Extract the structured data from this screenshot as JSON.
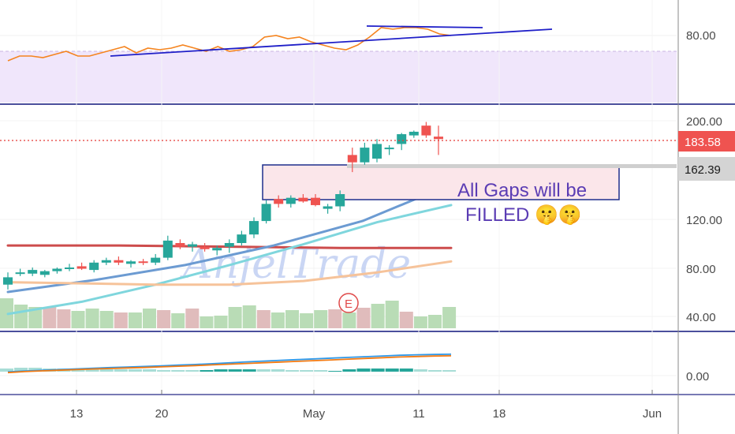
{
  "chart_data": {
    "type": "candlestick",
    "watermark": "AnjelTrade",
    "x_tick_labels": [
      "13",
      "20",
      "May",
      "11",
      "18",
      "Jun"
    ],
    "rsi_panel": {
      "tick_labels": [
        "80.00"
      ],
      "series": [
        {
          "values": [
            64,
            67,
            67,
            66,
            68,
            70,
            67,
            67,
            69,
            71,
            73,
            69,
            72,
            71,
            72,
            74,
            72,
            70,
            73,
            70,
            71,
            73,
            79,
            80,
            78,
            79,
            76,
            74,
            72,
            71,
            74,
            79,
            85,
            84,
            85,
            85,
            84,
            81,
            80
          ]
        },
        {
          "values": [
            67,
            84
          ]
        },
        {
          "values": [
            86,
            85
          ]
        }
      ]
    },
    "price_panel": {
      "tick_labels": [
        "200.00",
        "120.00",
        "80.00",
        "40.00"
      ],
      "last_price": "183.58",
      "marked_level": "162.39",
      "annotation_lines": [
        "All Gaps will be",
        "FILLED 🤫🤫"
      ],
      "earnings_marker": "E",
      "candles": [
        {
          "o": 66,
          "h": 76,
          "l": 62,
          "c": 72
        },
        {
          "o": 75,
          "h": 79,
          "l": 73,
          "c": 76
        },
        {
          "o": 75,
          "h": 80,
          "l": 73,
          "c": 78
        },
        {
          "o": 74,
          "h": 78,
          "l": 72,
          "c": 77
        },
        {
          "o": 77,
          "h": 80,
          "l": 75,
          "c": 79
        },
        {
          "o": 79,
          "h": 83,
          "l": 77,
          "c": 80
        },
        {
          "o": 81,
          "h": 84,
          "l": 78,
          "c": 79
        },
        {
          "o": 78,
          "h": 86,
          "l": 76,
          "c": 84
        },
        {
          "o": 84,
          "h": 88,
          "l": 82,
          "c": 86
        },
        {
          "o": 86,
          "h": 89,
          "l": 82,
          "c": 84
        },
        {
          "o": 83,
          "h": 86,
          "l": 80,
          "c": 85
        },
        {
          "o": 85,
          "h": 87,
          "l": 82,
          "c": 84
        },
        {
          "o": 84,
          "h": 91,
          "l": 82,
          "c": 88
        },
        {
          "o": 88,
          "h": 106,
          "l": 86,
          "c": 102
        },
        {
          "o": 100,
          "h": 103,
          "l": 95,
          "c": 97
        },
        {
          "o": 97,
          "h": 101,
          "l": 93,
          "c": 99
        },
        {
          "o": 97,
          "h": 100,
          "l": 93,
          "c": 95
        },
        {
          "o": 94,
          "h": 98,
          "l": 90,
          "c": 96
        },
        {
          "o": 97,
          "h": 103,
          "l": 92,
          "c": 100
        },
        {
          "o": 100,
          "h": 110,
          "l": 98,
          "c": 107
        },
        {
          "o": 107,
          "h": 121,
          "l": 104,
          "c": 118
        },
        {
          "o": 118,
          "h": 135,
          "l": 116,
          "c": 132
        },
        {
          "o": 136,
          "h": 139,
          "l": 129,
          "c": 132
        },
        {
          "o": 132,
          "h": 139,
          "l": 129,
          "c": 137
        },
        {
          "o": 137,
          "h": 140,
          "l": 133,
          "c": 134
        },
        {
          "o": 137,
          "h": 140,
          "l": 130,
          "c": 131
        },
        {
          "o": 128,
          "h": 132,
          "l": 124,
          "c": 130
        },
        {
          "o": 130,
          "h": 143,
          "l": 126,
          "c": 140
        },
        {
          "o": 172,
          "h": 178,
          "l": 158,
          "c": 166
        },
        {
          "o": 166,
          "h": 182,
          "l": 164,
          "c": 178
        },
        {
          "o": 169,
          "h": 185,
          "l": 166,
          "c": 181
        },
        {
          "o": 177,
          "h": 180,
          "l": 172,
          "c": 178
        },
        {
          "o": 181,
          "h": 190,
          "l": 176,
          "c": 189
        },
        {
          "o": 188,
          "h": 192,
          "l": 186,
          "c": 191
        },
        {
          "o": 196,
          "h": 199,
          "l": 186,
          "c": 188
        },
        {
          "o": 187,
          "h": 196,
          "l": 172,
          "c": 185
        }
      ],
      "ma_lines": [
        {
          "values": [
            98,
            98,
            97,
            96,
            96
          ]
        },
        {
          "values": [
            60,
            70,
            82,
            98,
            118,
            148
          ]
        },
        {
          "values": [
            42,
            52,
            66,
            82,
            99,
            117,
            131
          ]
        },
        {
          "values": [
            68,
            67,
            66,
            66,
            69,
            76,
            85
          ]
        }
      ],
      "volume": [
        38,
        30,
        27,
        27,
        24,
        22,
        25,
        22,
        20,
        20,
        25,
        23,
        19,
        25,
        15,
        16,
        27,
        29,
        23,
        20,
        23,
        19,
        23,
        24,
        20,
        26,
        31,
        35,
        21,
        15,
        17,
        27
      ]
    },
    "macd_panel": {
      "tick_labels": [
        "0.00"
      ],
      "macd": [
        -0.5,
        1.2,
        2.6,
        4.0,
        5.4,
        6.8,
        8.0,
        9.1,
        10.2,
        11.4,
        12.8,
        14.0,
        15.6,
        17.2,
        19.0,
        20.6,
        22.2,
        23.6,
        25.0,
        26.4,
        27.8,
        29.2,
        30.6,
        32.0,
        33.0,
        33.6,
        34.0
      ],
      "signal": [
        -1.8,
        0.2,
        1.6,
        2.8,
        4.0,
        5.2,
        6.2,
        7.2,
        8.2,
        9.4,
        10.6,
        11.8,
        13.2,
        14.6,
        16.0,
        17.4,
        18.8,
        20.2,
        21.6,
        23.0,
        24.4,
        25.8,
        27.2,
        28.6,
        29.6,
        30.4,
        31.0
      ],
      "histogram": [
        4,
        5,
        5,
        4,
        4,
        3,
        3,
        3,
        3,
        3,
        3,
        2,
        2,
        2,
        2,
        3,
        3,
        3,
        3,
        3,
        2,
        2,
        2,
        1,
        3,
        4,
        4,
        4,
        4,
        3,
        2,
        2
      ]
    },
    "colors": {
      "bull": "#26a69a",
      "bear": "#ef5350",
      "rsi_line": "#f5841f",
      "rsi_band": "#f0e6fb",
      "trendline": "#1f1fc8",
      "ma_red": "#cd4c4c",
      "ma_blue": "#6c9bd2",
      "ma_cyan": "#7fd6dd",
      "ma_peach": "#f6c39a",
      "macd_line": "#2f98e8",
      "signal_line": "#f37a12",
      "vol_bull": "#b9dcb6",
      "vol_bear": "#e0bcbc",
      "rect_fill": "#fbe6ea",
      "rect_stroke": "#1e2f8c",
      "panel_sep": "#4b4f9c",
      "last_price_tag": "#ef5350",
      "level_tag": "#d4d4d4"
    }
  }
}
